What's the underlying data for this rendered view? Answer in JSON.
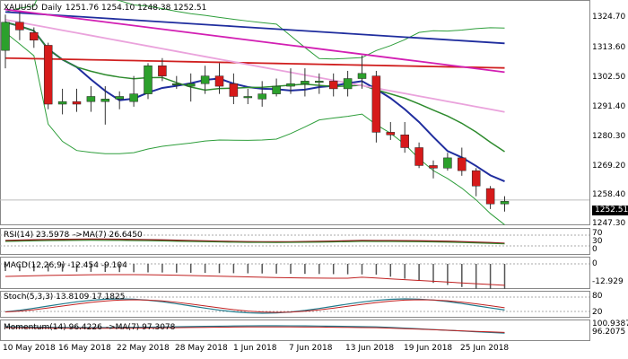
{
  "main": {
    "symbol": "XAUUSD",
    "timeframe": "Daily",
    "ohlc": "1251.76 1254.10 1248.38 1252.51",
    "last_price": "1252.51",
    "price_axis": [
      "1324.70",
      "1313.60",
      "1302.50",
      "1291.40",
      "1280.30",
      "1269.20",
      "1258.40",
      "1247.30"
    ],
    "colors": {
      "bull": "#2ca02c",
      "bear": "#d61a1a",
      "bbands": "#2e9e3b",
      "ma_blue": "#1f2d9e",
      "ma_red": "#d01f1f",
      "ma_magenta": "#d21fb3",
      "ma_pink": "#eaa3dc",
      "ma_green": "#2e8b2e"
    }
  },
  "rsi": {
    "label": "RSI(14) 23.5978",
    "ma_label": "->MA(7) 26.6450",
    "axis": [
      "70",
      "30",
      "0"
    ]
  },
  "macd": {
    "label": "MACD(12,26,9) -12.454 -9.104",
    "axis": [
      "0",
      "-12.929"
    ]
  },
  "stoch": {
    "label": "Stoch(5,3,3) 13.8109 17.1825",
    "axis": [
      "80",
      "20"
    ]
  },
  "momentum": {
    "label": "Momentum(14) 96.4226",
    "ma_label": "->MA(7) 97.3078",
    "axis": [
      "100.9387",
      "96.2075"
    ]
  },
  "dates": [
    "10 May 2018",
    "16 May 2018",
    "22 May 2018",
    "28 May 2018",
    "1 Jun 2018",
    "7 Jun 2018",
    "13 Jun 2018",
    "19 Jun 2018",
    "25 Jun 2018"
  ],
  "chart_data": {
    "type": "candlestick",
    "series": [
      {
        "date": "10 May",
        "o": 1311,
        "h": 1325,
        "l": 1304,
        "c": 1322
      },
      {
        "date": "11 May",
        "o": 1322,
        "h": 1326,
        "l": 1315,
        "c": 1319
      },
      {
        "date": "14 May",
        "o": 1318,
        "h": 1320,
        "l": 1312,
        "c": 1315
      },
      {
        "date": "15 May",
        "o": 1313,
        "h": 1314,
        "l": 1288,
        "c": 1290
      },
      {
        "date": "16 May",
        "o": 1290,
        "h": 1296,
        "l": 1286,
        "c": 1291
      },
      {
        "date": "17 May",
        "o": 1291,
        "h": 1296,
        "l": 1287,
        "c": 1290
      },
      {
        "date": "18 May",
        "o": 1291,
        "h": 1297,
        "l": 1287,
        "c": 1293
      },
      {
        "date": "21 May",
        "o": 1291,
        "h": 1297,
        "l": 1282,
        "c": 1292
      },
      {
        "date": "22 May",
        "o": 1292,
        "h": 1295,
        "l": 1288,
        "c": 1293
      },
      {
        "date": "23 May",
        "o": 1291,
        "h": 1301,
        "l": 1289,
        "c": 1294
      },
      {
        "date": "24 May",
        "o": 1294,
        "h": 1306,
        "l": 1292,
        "c": 1305
      },
      {
        "date": "25 May",
        "o": 1305,
        "h": 1308,
        "l": 1299,
        "c": 1301
      },
      {
        "date": "28 May",
        "o": 1298,
        "h": 1301,
        "l": 1296,
        "c": 1298
      },
      {
        "date": "29 May",
        "o": 1297,
        "h": 1302,
        "l": 1291,
        "c": 1298
      },
      {
        "date": "30 May",
        "o": 1298,
        "h": 1305,
        "l": 1294,
        "c": 1301
      },
      {
        "date": "31 May",
        "o": 1301,
        "h": 1306,
        "l": 1294,
        "c": 1297
      },
      {
        "date": "1 Jun",
        "o": 1298,
        "h": 1302,
        "l": 1290,
        "c": 1293
      },
      {
        "date": "4 Jun",
        "o": 1293,
        "h": 1296,
        "l": 1290,
        "c": 1293
      },
      {
        "date": "5 Jun",
        "o": 1292,
        "h": 1299,
        "l": 1289,
        "c": 1294
      },
      {
        "date": "6 Jun",
        "o": 1294,
        "h": 1300,
        "l": 1293,
        "c": 1297
      },
      {
        "date": "7 Jun",
        "o": 1297,
        "h": 1304,
        "l": 1294,
        "c": 1298
      },
      {
        "date": "8 Jun",
        "o": 1298,
        "h": 1304,
        "l": 1293,
        "c": 1299
      },
      {
        "date": "11 Jun",
        "o": 1299,
        "h": 1302,
        "l": 1294,
        "c": 1299
      },
      {
        "date": "12 Jun",
        "o": 1299,
        "h": 1302,
        "l": 1293,
        "c": 1296
      },
      {
        "date": "13 Jun",
        "o": 1296,
        "h": 1303,
        "l": 1293,
        "c": 1300
      },
      {
        "date": "14 Jun",
        "o": 1300,
        "h": 1309,
        "l": 1296,
        "c": 1302
      },
      {
        "date": "15 Jun",
        "o": 1301,
        "h": 1303,
        "l": 1275,
        "c": 1279
      },
      {
        "date": "18 Jun",
        "o": 1279,
        "h": 1283,
        "l": 1276,
        "c": 1278
      },
      {
        "date": "19 Jun",
        "o": 1278,
        "h": 1283,
        "l": 1271,
        "c": 1273
      },
      {
        "date": "20 Jun",
        "o": 1273,
        "h": 1275,
        "l": 1265,
        "c": 1266
      },
      {
        "date": "21 Jun",
        "o": 1266,
        "h": 1268,
        "l": 1261,
        "c": 1265
      },
      {
        "date": "22 Jun",
        "o": 1265,
        "h": 1271,
        "l": 1264,
        "c": 1269
      },
      {
        "date": "25 Jun",
        "o": 1269,
        "h": 1273,
        "l": 1262,
        "c": 1264
      },
      {
        "date": "26 Jun",
        "o": 1264,
        "h": 1265,
        "l": 1254,
        "c": 1258
      },
      {
        "date": "27 Jun",
        "o": 1257,
        "h": 1258,
        "l": 1249,
        "c": 1251
      },
      {
        "date": "28 Jun",
        "o": 1251,
        "h": 1254,
        "l": 1248,
        "c": 1252
      }
    ],
    "ylim": [
      1243,
      1330
    ],
    "grid": false
  }
}
